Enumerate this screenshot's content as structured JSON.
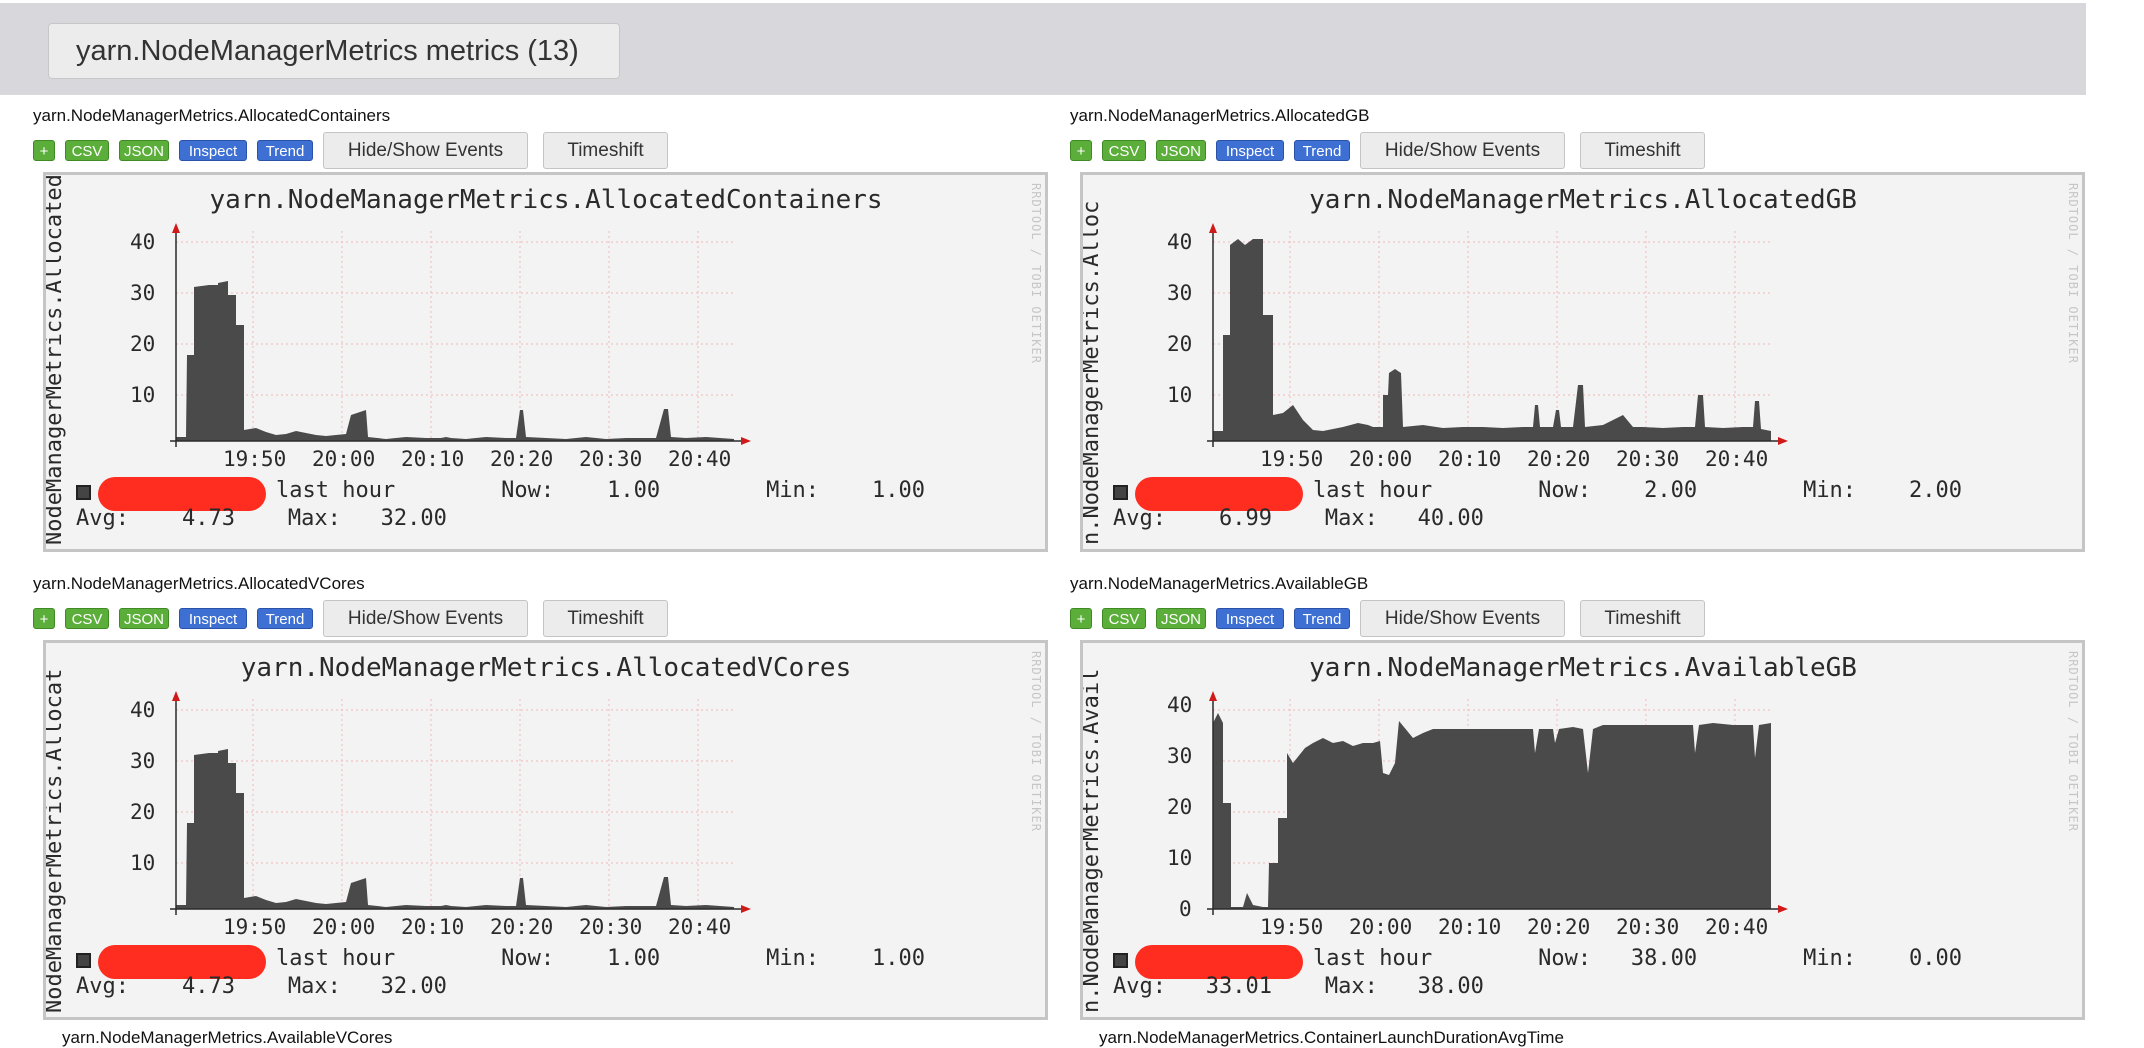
{
  "header": {
    "tab_label": "yarn.NodeManagerMetrics metrics (13)"
  },
  "buttons": {
    "plus": "+",
    "csv": "CSV",
    "json": "JSON",
    "inspect": "Inspect",
    "trend": "Trend",
    "hide_show": "Hide/Show Events",
    "timeshift": "Timeshift"
  },
  "watermark": "RRDTOOL / TOBI OETIKER",
  "time_labels": [
    "19:50",
    "20:00",
    "20:10",
    "20:20",
    "20:30",
    "20:40"
  ],
  "panels": [
    {
      "title": "yarn.NodeManagerMetrics.AllocatedContainers",
      "graph_title": "yarn.NodeManagerMetrics.AllocatedContainers",
      "vertical_label": "NodeManagerMetrics.Allocated",
      "legend_line1": "last hour        Now:    1.00        Min:    1.00",
      "legend_line2": "Avg:    4.73    Max:   32.00",
      "y_ticks": [
        "10",
        "20",
        "30",
        "40"
      ],
      "colors": {
        "area": "#4a4a4a"
      }
    },
    {
      "title": "yarn.NodeManagerMetrics.AllocatedGB",
      "graph_title": "yarn.NodeManagerMetrics.AllocatedGB",
      "vertical_label": "n.NodeManagerMetrics.Alloc",
      "legend_line1": "last hour        Now:    2.00        Min:    2.00",
      "legend_line2": "Avg:    6.99    Max:   40.00",
      "y_ticks": [
        "10",
        "20",
        "30",
        "40"
      ],
      "colors": {
        "area": "#4a4a4a"
      }
    },
    {
      "title": "yarn.NodeManagerMetrics.AllocatedVCores",
      "graph_title": "yarn.NodeManagerMetrics.AllocatedVCores",
      "vertical_label": "NodeManagerMetrics.Allocat",
      "legend_line1": "last hour        Now:    1.00        Min:    1.00",
      "legend_line2": "Avg:    4.73    Max:   32.00",
      "y_ticks": [
        "10",
        "20",
        "30",
        "40"
      ],
      "colors": {
        "area": "#4a4a4a"
      }
    },
    {
      "title": "yarn.NodeManagerMetrics.AvailableGB",
      "graph_title": "yarn.NodeManagerMetrics.AvailableGB",
      "vertical_label": "n.NodeManagerMetrics.Avail",
      "legend_line1": "last hour        Now:   38.00        Min:    0.00",
      "legend_line2": "Avg:   33.01    Max:   38.00",
      "y_ticks": [
        "0",
        "10",
        "20",
        "30",
        "40"
      ],
      "colors": {
        "area": "#4a4a4a"
      }
    }
  ],
  "footer": {
    "left_title": "yarn.NodeManagerMetrics.AvailableVCores",
    "right_title": "yarn.NodeManagerMetrics.ContainerLaunchDurationAvgTime"
  }
}
